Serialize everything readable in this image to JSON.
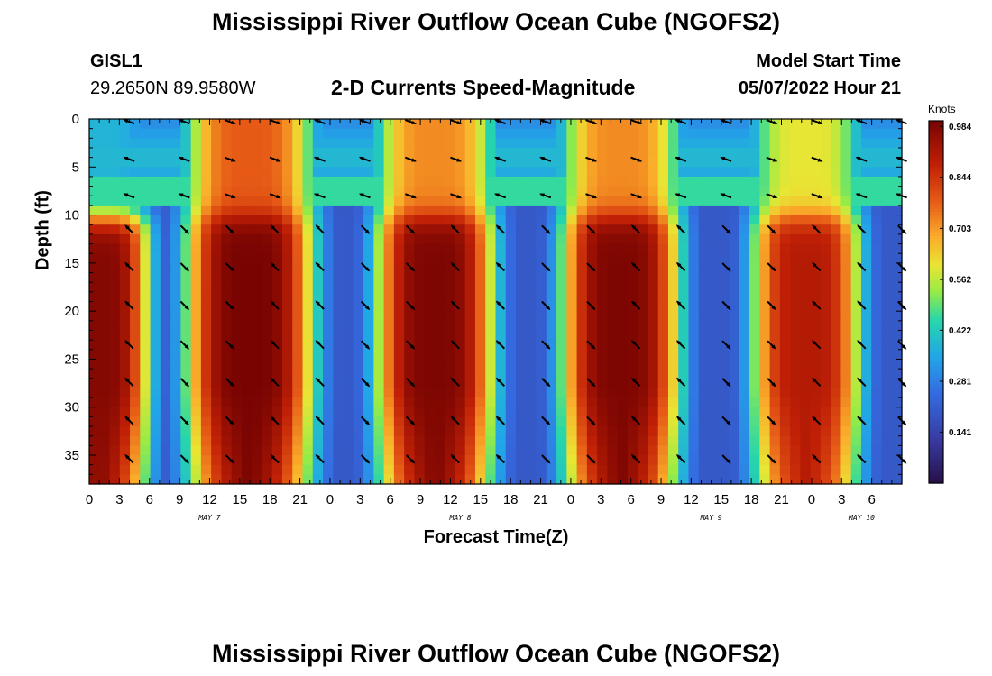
{
  "page": {
    "title_top": "Mississippi River Outflow Ocean Cube (NGOFS2)",
    "title_bottom": "Mississippi River Outflow Ocean Cube (NGOFS2)",
    "station_id": "GISL1",
    "station_coords": "29.2650N  89.9580W",
    "subtitle": "2-D Currents Speed-Magnitude",
    "model_start_label": "Model Start Time",
    "model_start_value": "05/07/2022 Hour 21"
  },
  "chart_data": {
    "type": "heatmap",
    "title": "2-D Currents Speed-Magnitude",
    "xlabel": "Forecast Time(Z)",
    "ylabel": "Depth (ft)",
    "colorbar_label": "Knots",
    "colorbar_ticks": [
      "0.984",
      "0.844",
      "0.703",
      "0.562",
      "0.422",
      "0.281",
      "0.141"
    ],
    "colorbar_values": [
      0.984,
      0.844,
      0.703,
      0.562,
      0.422,
      0.281,
      0.141
    ],
    "zlim": [
      0.0,
      1.0
    ],
    "xlim": [
      0,
      81
    ],
    "ylim": [
      0,
      38
    ],
    "x_tick_labels": [
      "0",
      "3",
      "6",
      "9",
      "12",
      "15",
      "18",
      "21",
      "0",
      "3",
      "6",
      "9",
      "12",
      "15",
      "18",
      "21",
      "0",
      "3",
      "6",
      "9",
      "12",
      "15",
      "18",
      "21",
      "0",
      "3",
      "6"
    ],
    "y_tick_labels": [
      "0",
      "5",
      "10",
      "15",
      "20",
      "25",
      "30",
      "35"
    ],
    "y_tick_values": [
      0,
      5,
      10,
      15,
      20,
      25,
      30,
      35
    ],
    "day_labels": [
      {
        "label": "MAY 7",
        "hour": 12
      },
      {
        "label": "MAY 8",
        "hour": 37
      },
      {
        "label": "MAY 9",
        "hour": 62
      },
      {
        "label": "MAY 10",
        "hour": 77
      }
    ],
    "arrow_columns_hours": [
      4,
      9.5,
      14,
      18.5,
      23,
      27.5,
      32,
      36.5,
      41,
      45.5,
      50,
      54.5,
      59,
      63.5,
      68,
      72.5,
      77,
      81
    ],
    "arrow_depths_ft": [
      0.3,
      4.2,
      8,
      11.5,
      15.4,
      19.4,
      23.5,
      27.4,
      31.4,
      35.4
    ],
    "current_pulses": [
      {
        "center_hour": 1,
        "halfwidth_hours": 5.5,
        "peak_knots": 0.98,
        "surface_peak_knots": 0.38
      },
      {
        "center_hour": 16,
        "halfwidth_hours": 7.0,
        "peak_knots": 1.0,
        "surface_peak_knots": 0.78
      },
      {
        "center_hour": 34.5,
        "halfwidth_hours": 6.5,
        "peak_knots": 0.99,
        "surface_peak_knots": 0.72
      },
      {
        "center_hour": 53,
        "halfwidth_hours": 6.5,
        "peak_knots": 0.99,
        "surface_peak_knots": 0.72
      },
      {
        "center_hour": 71.5,
        "halfwidth_hours": 6.0,
        "peak_knots": 0.9,
        "surface_peak_knots": 0.6
      }
    ]
  }
}
